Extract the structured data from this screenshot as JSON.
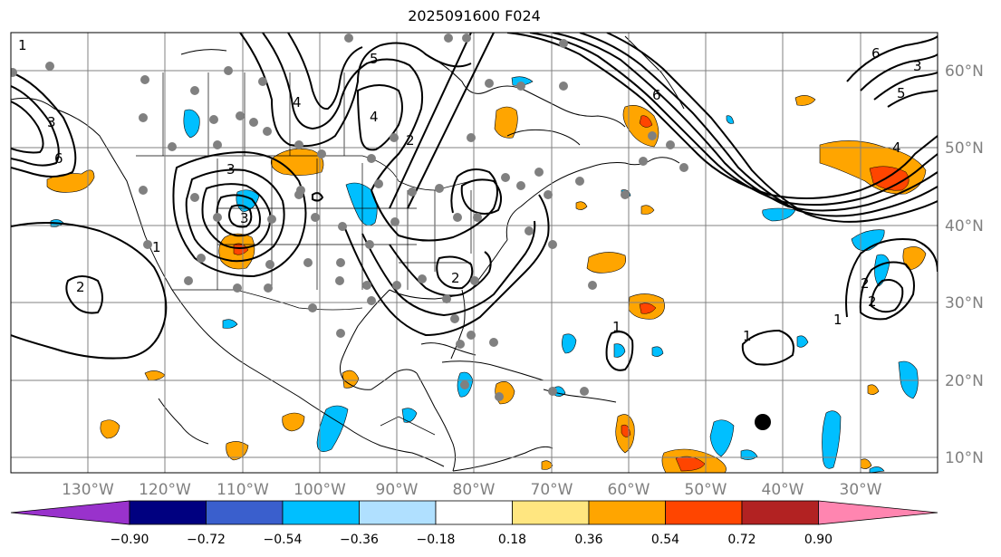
{
  "title": "2025091600 F024",
  "map": {
    "lon_labels": [
      "130°W",
      "120°W",
      "110°W",
      "100°W",
      "90°W",
      "80°W",
      "70°W",
      "60°W",
      "50°W",
      "40°W",
      "30°W"
    ],
    "lat_labels": [
      "60°N",
      "50°N",
      "40°N",
      "30°N",
      "20°N",
      "10°N"
    ],
    "contour_labels": [
      "1",
      "3",
      "6",
      "4",
      "5",
      "2",
      "1",
      "3",
      "4",
      "2",
      "2",
      "3",
      "1",
      "1",
      "2",
      "4",
      "6",
      "5",
      "3",
      "2",
      "1",
      "6"
    ],
    "colors": {
      "positive_1": "#ffa500",
      "positive_2": "#ff4500",
      "negative_1": "#00bfff",
      "contour": "#000000",
      "station": "#808080",
      "grid": "#808080"
    }
  },
  "colorbar": {
    "tick_labels": [
      "−0.90",
      "−0.72",
      "−0.54",
      "−0.36",
      "−0.18",
      "0.18",
      "0.36",
      "0.54",
      "0.72",
      "0.90"
    ],
    "bins": [
      {
        "color": "#9932cc"
      },
      {
        "color": "#000080"
      },
      {
        "color": "#3a5fcd"
      },
      {
        "color": "#00bfff"
      },
      {
        "color": "#b0e0ff"
      },
      {
        "color": "#ffffff"
      },
      {
        "color": "#ffe680"
      },
      {
        "color": "#ffa500"
      },
      {
        "color": "#ff4500"
      },
      {
        "color": "#b22222"
      },
      {
        "color": "#ff85b0"
      }
    ]
  }
}
